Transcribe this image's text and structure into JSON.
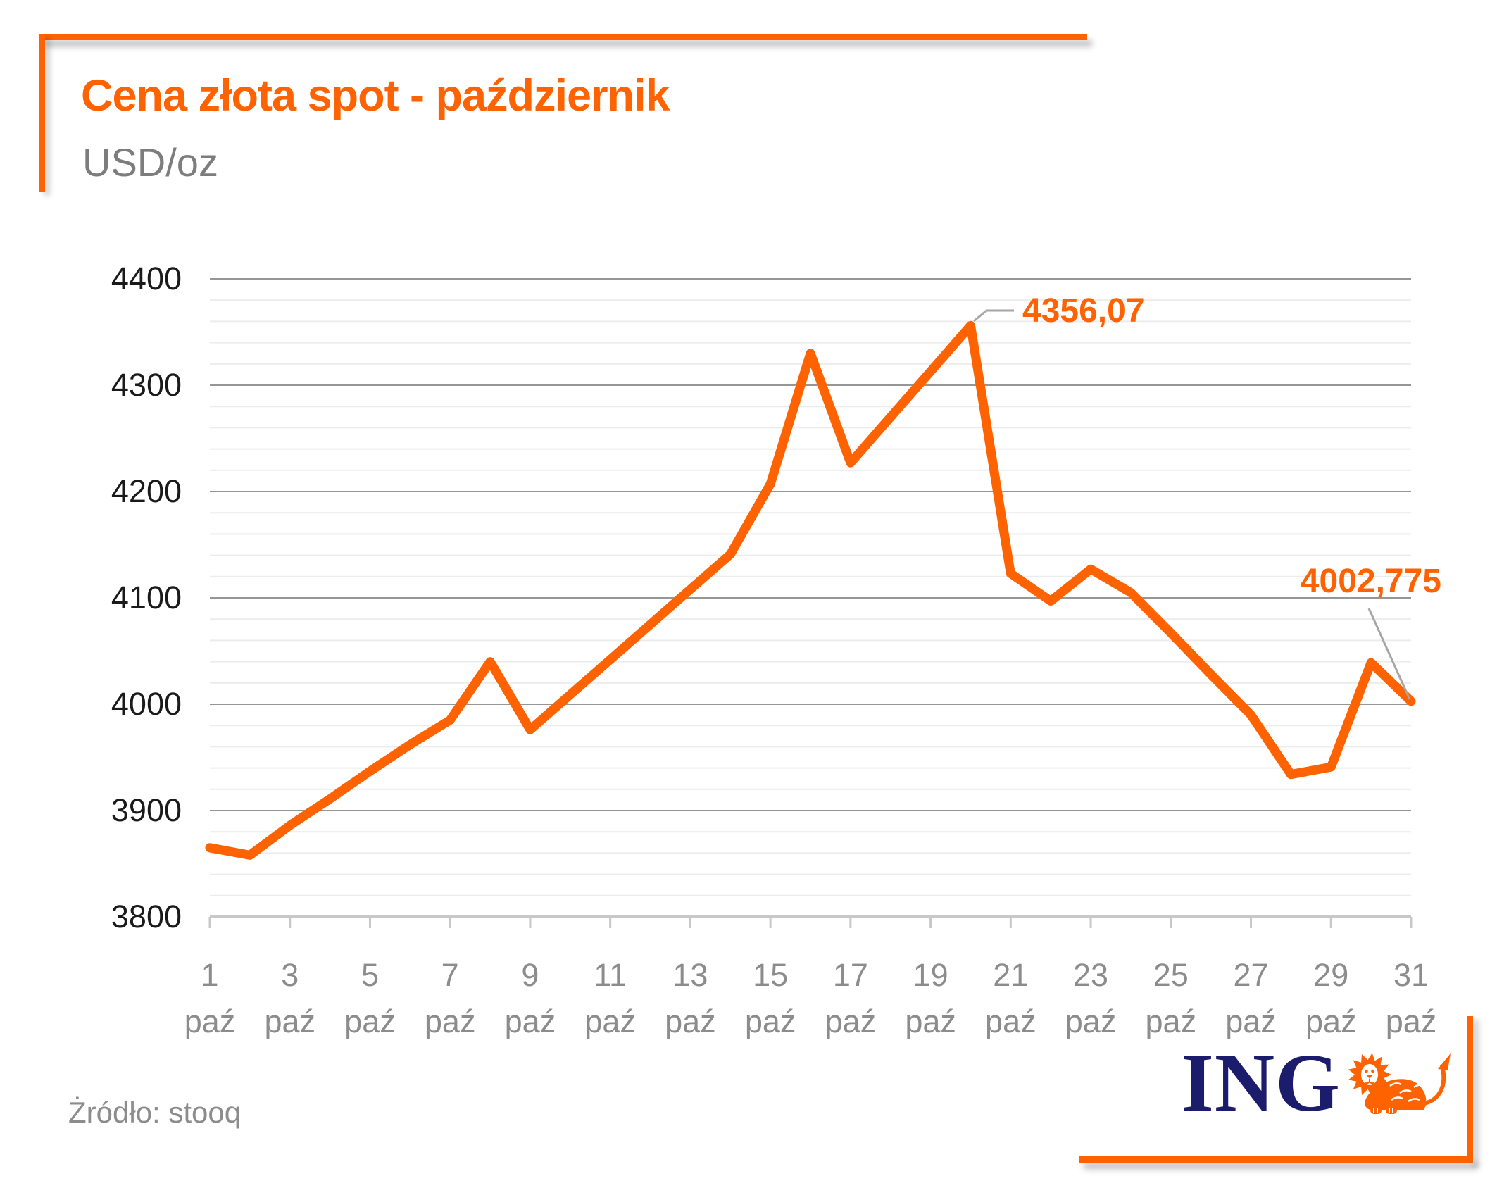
{
  "header": {
    "title": "Cena złota spot - październik",
    "subtitle": "USD/oz"
  },
  "source": {
    "label": "Żródło: stooq"
  },
  "logo": {
    "text": "ING",
    "icon": "ing-lion-icon"
  },
  "colors": {
    "accent": "#FF6200",
    "navy": "#1C1C6C",
    "gray_text": "#8C8C8C",
    "dark_text": "#1A1A1A",
    "grid_major": "#969696",
    "grid_minor": "#ECECEC",
    "axis": "#C8C8C8",
    "leader": "#A6A6A6"
  },
  "chart_data": {
    "type": "line",
    "title": "Cena złota spot - październik",
    "ylabel": "USD/oz",
    "xlabel": "",
    "x_unit": "paź",
    "x": [
      1,
      2,
      3,
      4,
      5,
      6,
      7,
      8,
      9,
      10,
      11,
      12,
      13,
      14,
      15,
      16,
      17,
      18,
      19,
      20,
      21,
      22,
      23,
      24,
      25,
      26,
      27,
      28,
      29,
      30,
      31
    ],
    "values": [
      3865,
      3858,
      3886,
      3911,
      3937,
      3962,
      3985,
      4040,
      3976,
      4009,
      4042,
      4075,
      4108,
      4141,
      4207,
      4330,
      4227,
      4270,
      4313,
      4356.07,
      4123,
      4097,
      4127,
      4105,
      4067,
      4028,
      3990,
      3934,
      3941,
      4039,
      4002.775
    ],
    "ylim": [
      3800,
      4400
    ],
    "yticks": [
      3800,
      3900,
      4000,
      4100,
      4200,
      4300,
      4400
    ],
    "ytick_step": 100,
    "minor_step": 20,
    "xticks": [
      1,
      3,
      5,
      7,
      9,
      11,
      13,
      15,
      17,
      19,
      21,
      23,
      25,
      27,
      29,
      31
    ],
    "grid": "on",
    "legend": "none",
    "line_color": "#FF6200",
    "annotations": [
      {
        "x": 20,
        "y": 4356.07,
        "label": "4356,07"
      },
      {
        "x": 31,
        "y": 4002.775,
        "label": "4002,775"
      }
    ]
  }
}
